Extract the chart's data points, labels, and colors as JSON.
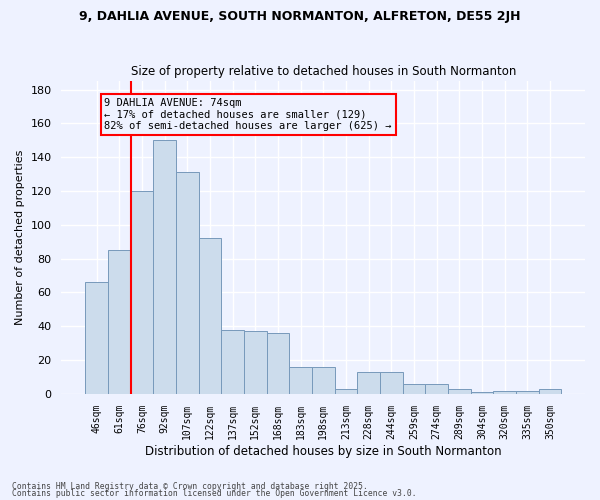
{
  "title1": "9, DAHLIA AVENUE, SOUTH NORMANTON, ALFRETON, DE55 2JH",
  "title2": "Size of property relative to detached houses in South Normanton",
  "xlabel": "Distribution of detached houses by size in South Normanton",
  "ylabel": "Number of detached properties",
  "categories": [
    "46sqm",
    "61sqm",
    "76sqm",
    "92sqm",
    "107sqm",
    "122sqm",
    "137sqm",
    "152sqm",
    "168sqm",
    "183sqm",
    "198sqm",
    "213sqm",
    "228sqm",
    "244sqm",
    "259sqm",
    "274sqm",
    "289sqm",
    "304sqm",
    "320sqm",
    "335sqm",
    "350sqm"
  ],
  "values": [
    66,
    85,
    120,
    150,
    131,
    92,
    38,
    37,
    36,
    16,
    16,
    3,
    13,
    13,
    6,
    6,
    3,
    1,
    2,
    2,
    3
  ],
  "bar_color": "#ccdcec",
  "bar_edge_color": "#7799bb",
  "ylim": [
    0,
    185
  ],
  "yticks": [
    0,
    20,
    40,
    60,
    80,
    100,
    120,
    140,
    160,
    180
  ],
  "red_line_x": 1.5,
  "annotation_line1": "9 DAHLIA AVENUE: 74sqm",
  "annotation_line2": "← 17% of detached houses are smaller (129)",
  "annotation_line3": "82% of semi-detached houses are larger (625) →",
  "footer1": "Contains HM Land Registry data © Crown copyright and database right 2025.",
  "footer2": "Contains public sector information licensed under the Open Government Licence v3.0.",
  "bg_color": "#eef2ff",
  "grid_color": "#ffffff"
}
